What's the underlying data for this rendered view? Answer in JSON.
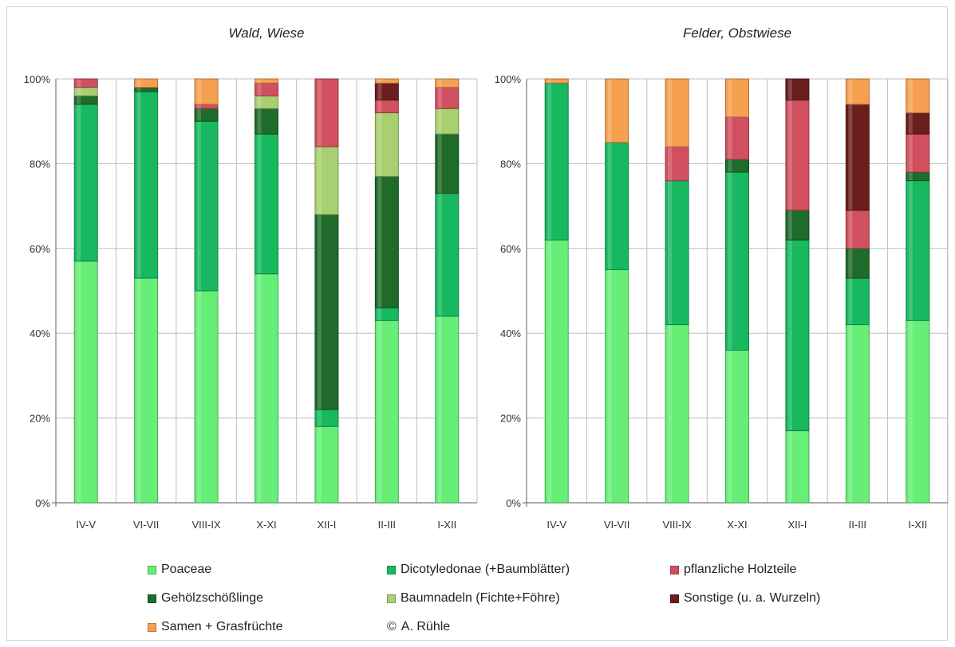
{
  "colors": {
    "Poaceae": "#66ee77",
    "Dicotyledonae": "#18b860",
    "Gehoelz": "#1e6b2a",
    "Baumnadeln": "#a8d070",
    "Holzteile": "#d05060",
    "Sonstige": "#6b1e1e",
    "Samen": "#f5a050"
  },
  "legend": {
    "items": [
      {
        "key": "Poaceae",
        "label": "Poaceae"
      },
      {
        "key": "Dicotyledonae",
        "label": "Dicotyledonae (+Baumblätter)"
      },
      {
        "key": "Holzteile",
        "label": "pflanzliche Holzteile"
      },
      {
        "key": "Gehoelz",
        "label": "Gehölzschößlinge"
      },
      {
        "key": "Baumnadeln",
        "label": "Baumnadeln (Fichte+Föhre)"
      },
      {
        "key": "Sonstige",
        "label": "Sonstige (u. a. Wurzeln)"
      },
      {
        "key": "Samen",
        "label": "Samen + Grasfrüchte"
      }
    ],
    "copyright": "A. Rühle"
  },
  "chart_data": [
    {
      "type": "bar",
      "stacked": true,
      "title": "Wald, Wiese",
      "categories": [
        "IV-V",
        "VI-VII",
        "VIII-IX",
        "X-XI",
        "XII-I",
        "II-III",
        "I-XII"
      ],
      "yticks": [
        "0%",
        "20%",
        "40%",
        "60%",
        "80%",
        "100%"
      ],
      "ylim": [
        0,
        100
      ],
      "grid": true,
      "series": [
        {
          "key": "Poaceae",
          "values": [
            57,
            53,
            50,
            54,
            18,
            43,
            44
          ]
        },
        {
          "key": "Dicotyledonae",
          "values": [
            37,
            44,
            40,
            33,
            4,
            3,
            29
          ]
        },
        {
          "key": "Gehoelz",
          "values": [
            2,
            1,
            3,
            6,
            46,
            31,
            14
          ]
        },
        {
          "key": "Baumnadeln",
          "values": [
            2,
            0,
            0,
            3,
            16,
            15,
            6
          ]
        },
        {
          "key": "Holzteile",
          "values": [
            2,
            0,
            1,
            3,
            16,
            3,
            5
          ]
        },
        {
          "key": "Sonstige",
          "values": [
            0,
            0,
            0,
            0,
            0,
            4,
            0
          ]
        },
        {
          "key": "Samen",
          "values": [
            0,
            2,
            6,
            1,
            0,
            1,
            2
          ]
        }
      ]
    },
    {
      "type": "bar",
      "stacked": true,
      "title": "Felder, Obstwiese",
      "categories": [
        "IV-V",
        "VI-VII",
        "VIII-IX",
        "X-XI",
        "XII-I",
        "II-III",
        "I-XII"
      ],
      "yticks": [
        "0%",
        "20%",
        "40%",
        "60%",
        "80%",
        "100%"
      ],
      "ylim": [
        0,
        100
      ],
      "grid": true,
      "series": [
        {
          "key": "Poaceae",
          "values": [
            62,
            55,
            42,
            36,
            17,
            42,
            43
          ]
        },
        {
          "key": "Dicotyledonae",
          "values": [
            37,
            30,
            34,
            42,
            45,
            11,
            33
          ]
        },
        {
          "key": "Gehoelz",
          "values": [
            0,
            0,
            0,
            3,
            7,
            7,
            2
          ]
        },
        {
          "key": "Baumnadeln",
          "values": [
            0,
            0,
            0,
            0,
            0,
            0,
            0
          ]
        },
        {
          "key": "Holzteile",
          "values": [
            0,
            0,
            8,
            10,
            26,
            9,
            9
          ]
        },
        {
          "key": "Sonstige",
          "values": [
            0,
            0,
            0,
            0,
            5,
            25,
            5
          ]
        },
        {
          "key": "Samen",
          "values": [
            1,
            15,
            16,
            9,
            0,
            6,
            8
          ]
        }
      ]
    }
  ]
}
